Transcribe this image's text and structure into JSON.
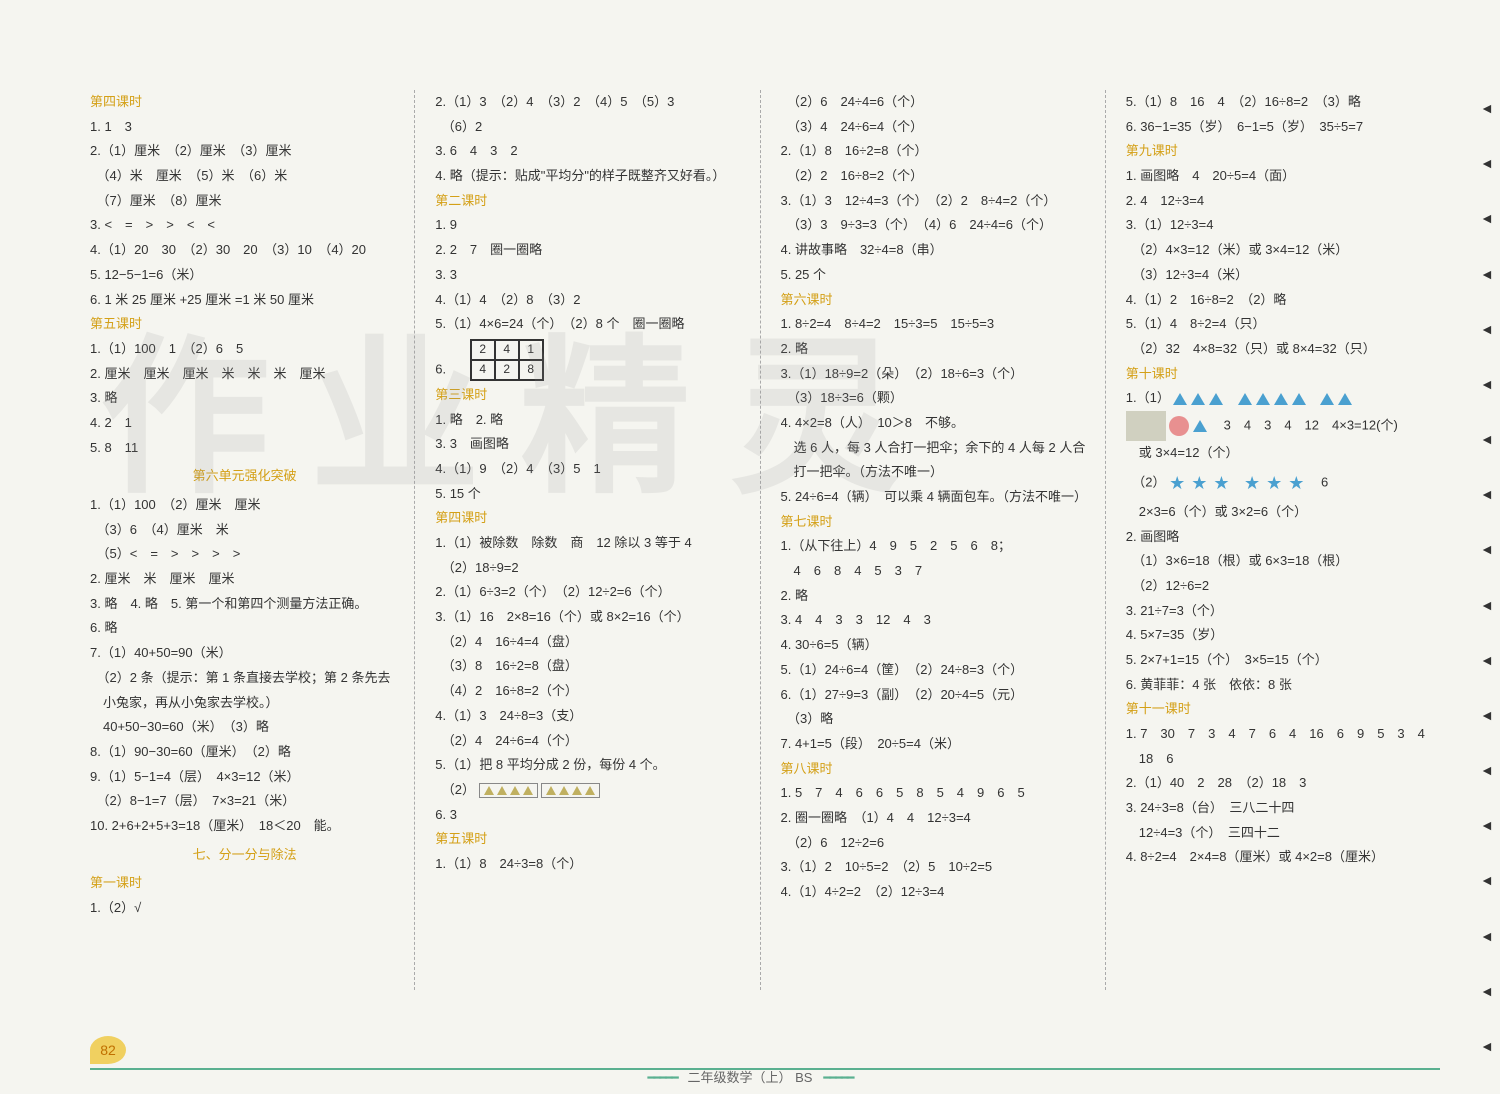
{
  "page_number": "82",
  "footer": "二年级数学（上） BS",
  "watermark": "作业精灵",
  "col1": {
    "s1_header": "第四课时",
    "lines": [
      "1. 1　3",
      "2.（1）厘米　（2）厘米　（3）厘米",
      "　（4）米　厘米　（5）米　（6）米",
      "　（7）厘米　（8）厘米",
      "3. <　=　>　>　<　<",
      "4.（1）20　30　（2）30　20　（3）10　（4）20",
      "5. 12−5−1=6（米）",
      "6. 1 米 25 厘米 +25 厘米 =1 米 50 厘米"
    ],
    "s2_header": "第五课时",
    "s2_lines": [
      "1.（1）100　1　（2）6　5",
      "2. 厘米　厘米　厘米　米　米　米　厘米",
      "3. 略",
      "4. 2　1",
      "5. 8　11"
    ],
    "s3_header": "第六单元强化突破",
    "s3_lines": [
      "1.（1）100　（2）厘米　厘米",
      "　（3）6　（4）厘米　米",
      "　（5）<　=　>　>　>　>",
      "2. 厘米　米　厘米　厘米",
      "3. 略　4. 略　5. 第一个和第四个测量方法正确。",
      "6. 略",
      "7.（1）40+50=90（米）",
      "　（2）2 条（提示：第 1 条直接去学校；第 2 条先去",
      "　小兔家，再从小兔家去学校。）",
      "　40+50−30=60（米）　（3）略",
      "8.（1）90−30=60（厘米）　（2）略",
      "9.（1）5−1=4（层）　4×3=12（米）",
      "　（2）8−1=7（层）　7×3=21（米）",
      "10. 2+6+2+5+3=18（厘米）　18＜20　能。"
    ],
    "s4_header": "七、分一分与除法",
    "s5_header": "第一课时",
    "s5_line": "1.（2）√"
  },
  "col2": {
    "top_lines": [
      "2.（1）3　（2）4　（3）2　（4）5　（5）3",
      "　（6）2",
      "3. 6　4　3　2",
      "4. 略（提示：贴成\"平均分\"的样子既整齐又好看。）"
    ],
    "s1_header": "第二课时",
    "s1_lines": [
      "1. 9",
      "2. 2　7　圈一圈略",
      "3. 3",
      "4.（1）4　（2）8　（3）2",
      "5.（1）4×6=24（个）　（2）8 个　圈一圈略",
      "6."
    ],
    "grid": [
      [
        "2",
        "4",
        "1"
      ],
      [
        "4",
        "2",
        "8"
      ]
    ],
    "s2_header": "第三课时",
    "s2_lines": [
      "1. 略　2. 略",
      "3. 3　画图略",
      "4.（1）9　（2）4　（3）5　1",
      "5. 15 个"
    ],
    "s3_header": "第四课时",
    "s3_lines": [
      "1.（1）被除数　除数　商　12 除以 3 等于 4",
      "　（2）18÷9=2",
      "2.（1）6÷3=2（个）　（2）12÷2=6（个）",
      "3.（1）16　2×8=16（个）或 8×2=16（个）",
      "　（2）4　16÷4=4（盘）",
      "　（3）8　16÷2=8（盘）",
      "　（4）2　16÷8=2（个）",
      "4.（1）3　24÷8=3（支）",
      "　（2）4　24÷6=4（个）",
      "5.（1）把 8 平均分成 2 份，每份 4 个。",
      "　（2）"
    ],
    "s3_tail": "6. 3",
    "s4_header": "第五课时",
    "s4_line": "1.（1）8　24÷3=8（个）"
  },
  "col3": {
    "top_lines": [
      "　（2）6　24÷4=6（个）",
      "　（3）4　24÷6=4（个）",
      "2.（1）8　16÷2=8（个）",
      "　（2）2　16÷8=2（个）",
      "3.（1）3　12÷4=3（个）　（2）2　8÷4=2（个）",
      "　（3）3　9÷3=3（个）　（4）6　24÷4=6（个）",
      "4. 讲故事略　32÷4=8（串）",
      "5. 25 个"
    ],
    "s1_header": "第六课时",
    "s1_lines": [
      "1. 8÷2=4　8÷4=2　15÷3=5　15÷5=3",
      "2. 略",
      "3.（1）18÷9=2（朵）　（2）18÷6=3（个）",
      "　（3）18÷3=6（颗）",
      "4. 4×2=8（人）　10＞8　不够。",
      "　选 6 人，每 3 人合打一把伞；余下的 4 人每 2 人合",
      "　打一把伞。（方法不唯一）",
      "5. 24÷6=4（辆）　可以乘 4 辆面包车。（方法不唯一）"
    ],
    "s2_header": "第七课时",
    "s2_lines": [
      "1.（从下往上）4　9　5　2　5　6　8；",
      "　4　6　8　4　5　3　7",
      "2. 略",
      "3. 4　4　3　3　12　4　3",
      "4. 30÷6=5（辆）",
      "5.（1）24÷6=4（筐）　（2）24÷8=3（个）",
      "6.（1）27÷9=3（副）　（2）20÷4=5（元）",
      "　（3）略",
      "7. 4+1=5（段）　20÷5=4（米）"
    ],
    "s3_header": "第八课时",
    "s3_lines": [
      "1. 5　7　4　6　6　5　8　5　4　9　6　5",
      "2. 圈一圈略　（1）4　4　12÷3=4",
      "　（2）6　12÷2=6",
      "3.（1）2　10÷5=2　（2）5　10÷2=5",
      "4.（1）4÷2=2　（2）12÷3=4"
    ]
  },
  "col4": {
    "top_lines": [
      "5.（1）8　16　4　（2）16÷8=2　（3）略",
      "6. 36−1=35（岁）　6−1=5（岁）　35÷5=7"
    ],
    "s1_header": "第九课时",
    "s1_lines": [
      "1. 画图略　4　20÷5=4（面）",
      "2. 4　12÷3=4",
      "3.（1）12÷3=4",
      "　（2）4×3=12（米）或 3×4=12（米）",
      "　（3）12÷3=4（米）",
      "4.（1）2　16÷8=2　（2）略",
      "5.（1）4　8÷2=4（只）",
      "　（2）32　4×8=32（只）或 8×4=32（只）"
    ],
    "s2_header": "第十课时",
    "s2_line1": "1.（1）",
    "s2_mid": "　3　4　3　4　12　4×3=12(个)",
    "s2_mid2": "　或 3×4=12（个）",
    "s2_line2": "　（2）",
    "s2_tail": "　6",
    "s2_lines": [
      "　2×3=6（个）或 3×2=6（个）",
      "2. 画图略",
      "　（1）3×6=18（根）或 6×3=18（根）",
      "　（2）12÷6=2",
      "3. 21÷7=3（个）",
      "4. 5×7=35（岁）",
      "5. 2×7+1=15（个）　3×5=15（个）",
      "6. 黄菲菲：4 张　依依：8 张"
    ],
    "s3_header": "第十一课时",
    "s3_lines": [
      "1. 7　30　7　3　4　7　6　4　16　6　9　5　3　4",
      "　18　6",
      "2.（1）40　2　28　（2）18　3",
      "3. 24÷3=8（台）　三八二十四",
      "　12÷4=3（个）　三四十二",
      "4. 8÷2=4　2×4=8（厘米）或 4×2=8（厘米）"
    ]
  }
}
